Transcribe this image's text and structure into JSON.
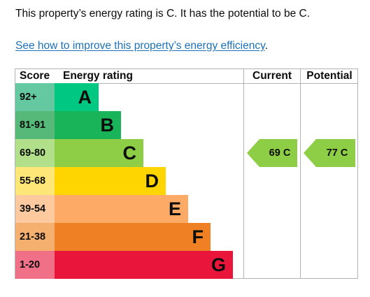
{
  "summary_text": "This property’s energy rating is C. It has the potential to be C.",
  "improve_link": "See how to improve this property’s energy efficiency",
  "improve_link_suffix": ".",
  "table": {
    "headers": {
      "score": "Score",
      "rating": "Energy rating",
      "current": "Current",
      "potential": "Potential"
    },
    "bands": [
      {
        "score": "92+",
        "letter": "A",
        "color": "#00c781",
        "score_bg": "#64c8a0"
      },
      {
        "score": "81-91",
        "letter": "B",
        "color": "#19b459",
        "score_bg": "#56b979"
      },
      {
        "score": "69-80",
        "letter": "C",
        "color": "#8dce46",
        "score_bg": "#b2df89"
      },
      {
        "score": "55-68",
        "letter": "D",
        "color": "#ffd500",
        "score_bg": "#ffe678"
      },
      {
        "score": "39-54",
        "letter": "E",
        "color": "#fcaa65",
        "score_bg": "#fdcaa0"
      },
      {
        "score": "21-38",
        "letter": "F",
        "color": "#ef8023",
        "score_bg": "#f5b070"
      },
      {
        "score": "1-20",
        "letter": "G",
        "color": "#e9153b",
        "score_bg": "#f07088"
      }
    ],
    "current": {
      "label": "69  C",
      "band": "C",
      "color": "#8dce46"
    },
    "potential": {
      "label": "77  C",
      "band": "C",
      "color": "#8dce46"
    }
  }
}
